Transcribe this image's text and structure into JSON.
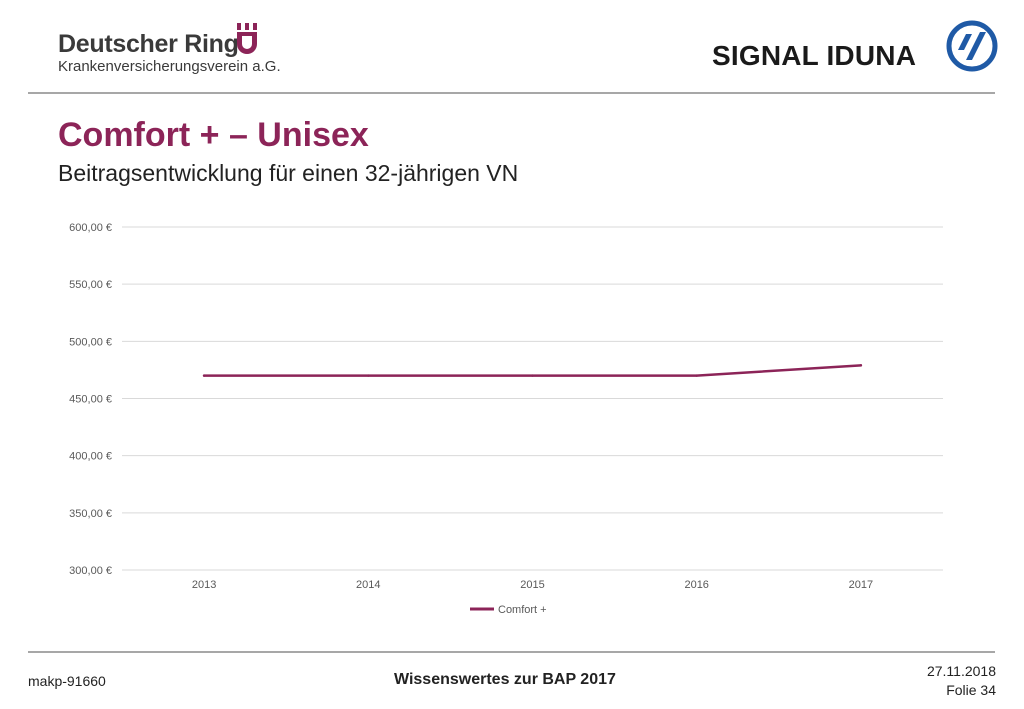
{
  "header": {
    "left_logo": {
      "name": "Deutscher Ring",
      "subtitle": "Krankenversicherungsverein a.G."
    },
    "right_logo": {
      "name": "SIGNAL IDUNA"
    }
  },
  "slide": {
    "title": "Comfort + – Unisex",
    "subtitle": "Beitragsentwicklung für einen 32-jährigen VN"
  },
  "colors": {
    "accent": "#8c2458",
    "grid": "#d9d9d9",
    "signal_blue": "#1f5aa6"
  },
  "chart_data": {
    "type": "line",
    "categories": [
      "2013",
      "2014",
      "2015",
      "2016",
      "2017"
    ],
    "series": [
      {
        "name": "Comfort +",
        "values": [
          470,
          470,
          470,
          470,
          479
        ]
      }
    ],
    "ylim": [
      300,
      600
    ],
    "yticks": [
      300,
      350,
      400,
      450,
      500,
      550,
      600
    ],
    "ytick_labels": [
      "300,00 €",
      "350,00 €",
      "400,00 €",
      "450,00 €",
      "500,00 €",
      "550,00 €",
      "600,00 €"
    ],
    "grid": true,
    "legend_position": "bottom",
    "title": "",
    "xlabel": "",
    "ylabel": ""
  },
  "footer": {
    "id": "makp-91660",
    "center": "Wissenswertes zur BAP 2017",
    "date": "27.11.2018",
    "slide_number": "Folie 34"
  }
}
